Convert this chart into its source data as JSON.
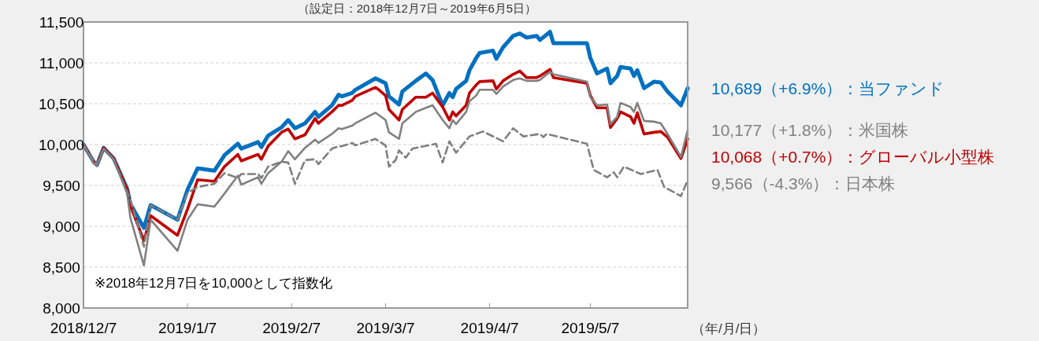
{
  "chart_data": {
    "type": "line",
    "subtitle": "（設定日：2018年12月7日～2019年6月5日）",
    "xlabel": "（年/月/日）",
    "annotations": [
      "※2018年12月7日を10,000として指数化"
    ],
    "x": [
      "2018-12-07",
      "2018-12-10",
      "2018-12-11",
      "2018-12-13",
      "2018-12-16",
      "2018-12-20",
      "2018-12-21",
      "2018-12-25",
      "2018-12-27",
      "2019-01-04",
      "2019-01-07",
      "2019-01-10",
      "2019-01-15",
      "2019-01-18",
      "2019-01-22",
      "2019-01-23",
      "2019-01-28",
      "2019-01-29",
      "2019-01-31",
      "2019-02-04",
      "2019-02-06",
      "2019-02-08",
      "2019-02-11",
      "2019-02-14",
      "2019-02-15",
      "2019-02-19",
      "2019-02-21",
      "2019-02-22",
      "2019-02-25",
      "2019-02-26",
      "2019-03-04",
      "2019-03-05",
      "2019-03-07",
      "2019-03-08",
      "2019-03-11",
      "2019-03-12",
      "2019-03-16",
      "2019-03-19",
      "2019-03-21",
      "2019-03-24",
      "2019-03-26",
      "2019-03-27",
      "2019-03-28",
      "2019-03-31",
      "2019-04-01",
      "2019-04-03",
      "2019-04-04",
      "2019-04-08",
      "2019-04-09",
      "2019-04-11",
      "2019-04-14",
      "2019-04-16",
      "2019-04-18",
      "2019-04-21",
      "2019-04-22",
      "2019-04-25",
      "2019-04-26",
      "2019-05-06",
      "2019-05-07",
      "2019-05-09",
      "2019-05-12",
      "2019-05-13",
      "2019-05-15",
      "2019-05-16",
      "2019-05-19",
      "2019-05-20",
      "2019-05-21",
      "2019-05-23",
      "2019-05-26",
      "2019-05-28",
      "2019-05-30",
      "2019-06-03",
      "2019-06-05"
    ],
    "xlim": [
      "2018-12-07",
      "2019-06-05"
    ],
    "xticks": [
      {
        "value": "2018-12-07",
        "label": "2018/12/7"
      },
      {
        "value": "2019-01-07",
        "label": "2019/1/7"
      },
      {
        "value": "2019-02-07",
        "label": "2019/2/7"
      },
      {
        "value": "2019-03-07",
        "label": "2019/3/7"
      },
      {
        "value": "2019-04-07",
        "label": "2019/4/7"
      },
      {
        "value": "2019-05-07",
        "label": "2019/5/7"
      }
    ],
    "ylim": [
      8000,
      11500
    ],
    "yticks": [
      {
        "value": 8000,
        "label": "8,000"
      },
      {
        "value": 8500,
        "label": "8,500"
      },
      {
        "value": 9000,
        "label": "9,000"
      },
      {
        "value": 9500,
        "label": "9,500"
      },
      {
        "value": 10000,
        "label": "10,000"
      },
      {
        "value": 10500,
        "label": "10,500"
      },
      {
        "value": 11000,
        "label": "11,000"
      },
      {
        "value": 11500,
        "label": "11,500"
      }
    ],
    "grid": "y",
    "series": [
      {
        "name": "10,689（+6.9%）：当ファンド",
        "color": "#0070c0",
        "values": [
          10000,
          9790,
          9750,
          9960,
          9830,
          9460,
          9270,
          8980,
          9260,
          9080,
          9450,
          9710,
          9680,
          9870,
          10010,
          9950,
          10030,
          9970,
          10110,
          10210,
          10300,
          10200,
          10260,
          10400,
          10340,
          10480,
          10610,
          10590,
          10630,
          10670,
          10810,
          10790,
          10750,
          10590,
          10490,
          10650,
          10780,
          10870,
          10790,
          10480,
          10630,
          10580,
          10680,
          10780,
          10910,
          11060,
          11120,
          11150,
          11050,
          11190,
          11330,
          11360,
          11310,
          11330,
          11280,
          11380,
          11240,
          11240,
          11060,
          10870,
          10930,
          10750,
          10840,
          10950,
          10930,
          10840,
          10910,
          10690,
          10770,
          10760,
          10650,
          10480,
          10689
        ]
      },
      {
        "name": "10,177（+1.8%）：米国株",
        "color": "#808080",
        "values": [
          10000,
          9770,
          9740,
          9950,
          9820,
          9400,
          9100,
          8520,
          9080,
          8700,
          9080,
          9270,
          9240,
          9400,
          9620,
          9510,
          9600,
          9520,
          9650,
          9790,
          9920,
          9820,
          9960,
          10060,
          10020,
          10130,
          10200,
          10190,
          10230,
          10260,
          10390,
          10360,
          10300,
          10150,
          10070,
          10260,
          10400,
          10450,
          10480,
          10300,
          10200,
          10300,
          10250,
          10400,
          10530,
          10600,
          10670,
          10670,
          10620,
          10710,
          10790,
          10810,
          10780,
          10780,
          10790,
          10890,
          10860,
          10770,
          10580,
          10480,
          10490,
          10250,
          10340,
          10510,
          10460,
          10400,
          10510,
          10290,
          10280,
          10260,
          10130,
          9850,
          10177
        ]
      },
      {
        "name": "10,068（+0.7%）：グローバル小型株",
        "color": "#c00000",
        "values": [
          10000,
          9790,
          9750,
          9960,
          9830,
          9450,
          9250,
          8820,
          9130,
          8890,
          9210,
          9570,
          9550,
          9730,
          9880,
          9800,
          9880,
          9820,
          9980,
          10150,
          10190,
          10070,
          10120,
          10320,
          10260,
          10400,
          10480,
          10480,
          10540,
          10590,
          10700,
          10670,
          10600,
          10430,
          10300,
          10430,
          10580,
          10580,
          10630,
          10460,
          10300,
          10400,
          10350,
          10480,
          10630,
          10730,
          10770,
          10780,
          10680,
          10780,
          10860,
          10900,
          10820,
          10820,
          10840,
          10920,
          10820,
          10750,
          10600,
          10450,
          10450,
          10210,
          10320,
          10400,
          10340,
          10260,
          10390,
          10130,
          10150,
          10160,
          10090,
          9830,
          10068
        ]
      },
      {
        "name": "9,566（-4.3%）：日本株",
        "color": "#7f7f7f",
        "line_style": "dashed",
        "x": [
          "2018-12-07",
          "2018-12-10",
          "2018-12-11",
          "2018-12-13",
          "2018-12-16",
          "2018-12-20",
          "2018-12-21",
          "2018-12-25",
          "2018-12-27",
          "2019-01-04",
          "2019-01-07",
          "2019-01-10",
          "2019-01-15",
          "2019-01-18",
          "2019-01-22",
          "2019-01-23",
          "2019-01-28",
          "2019-01-29",
          "2019-01-31",
          "2019-02-04",
          "2019-02-06",
          "2019-02-08",
          "2019-02-11",
          "2019-02-14",
          "2019-02-15",
          "2019-02-19",
          "2019-02-21",
          "2019-02-22",
          "2019-02-25",
          "2019-02-26",
          "2019-03-04",
          "2019-03-05",
          "2019-03-07",
          "2019-03-08",
          "2019-03-10",
          "2019-03-11",
          "2019-03-13",
          "2019-03-15",
          "2019-03-22",
          "2019-03-24",
          "2019-03-26",
          "2019-03-28",
          "2019-04-01",
          "2019-04-05",
          "2019-04-11",
          "2019-04-14",
          "2019-04-17",
          "2019-04-22",
          "2019-04-23",
          "2019-04-24",
          "2019-05-06",
          "2019-05-08",
          "2019-05-12",
          "2019-05-14",
          "2019-05-15",
          "2019-05-17",
          "2019-05-22",
          "2019-05-27",
          "2019-05-29",
          "2019-06-03",
          "2019-06-05"
        ],
        "values": [
          10000,
          9800,
          9760,
          9950,
          9820,
          9420,
          9320,
          8750,
          9260,
          9080,
          9410,
          9480,
          9520,
          9650,
          9590,
          9640,
          9640,
          9590,
          9730,
          9790,
          9780,
          9520,
          9810,
          9820,
          9760,
          9950,
          9980,
          9980,
          10020,
          9990,
          10070,
          10040,
          9990,
          9730,
          9810,
          9930,
          9840,
          9950,
          10010,
          9780,
          10040,
          9900,
          10100,
          10160,
          10040,
          10200,
          10100,
          10130,
          10090,
          10130,
          10010,
          9690,
          9600,
          9660,
          9600,
          9730,
          9640,
          9690,
          9480,
          9370,
          9566
        ]
      }
    ]
  }
}
